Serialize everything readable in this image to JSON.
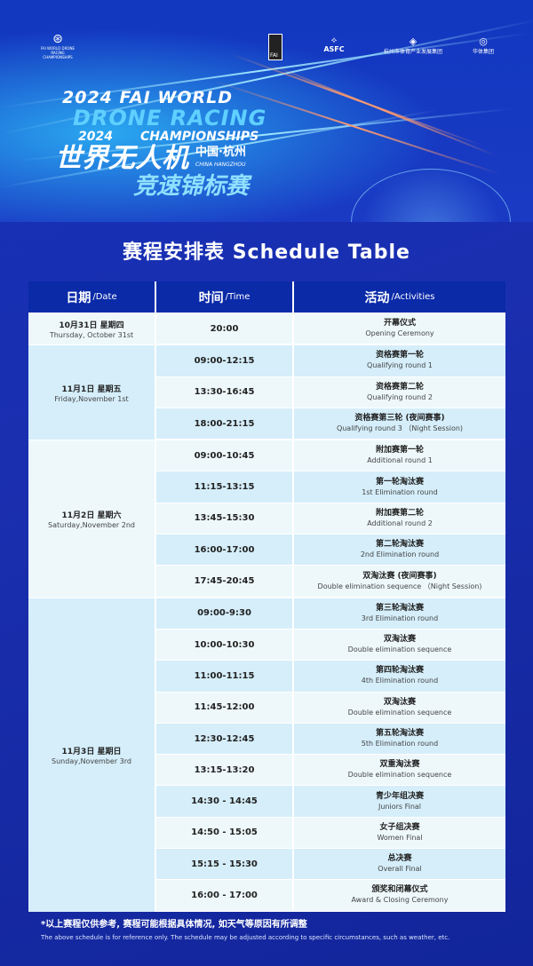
{
  "header": {
    "logos": [
      {
        "name": "drone-racing-championship-logo",
        "text": "FAI WORLD DRONE RACING CHAMPIONSHIPS"
      },
      {
        "name": "fai-logo",
        "text": "FAI"
      },
      {
        "name": "asfc-logo",
        "text": "ASFC"
      },
      {
        "name": "hangzhou-sports-logo",
        "text": "杭州市体育产业发展集团"
      },
      {
        "name": "huati-logo",
        "text": "华体集团"
      }
    ],
    "title_line1": "2024 FAI WORLD",
    "title_line2": "DRONE RACING",
    "title_line3": "CHAMPIONSHIPS",
    "cn_year": "2024",
    "cn_title1": "世界无人机",
    "cn_city": "中国·杭州",
    "en_city": "CHINA HANGZHOU",
    "cn_title2": "竞速锦标赛"
  },
  "schedule_title": "赛程安排表 Schedule Table",
  "columns": [
    {
      "zh": "日期",
      "en": "/Date"
    },
    {
      "zh": "时间",
      "en": "/Time"
    },
    {
      "zh": "活动",
      "en": "/Activities"
    }
  ],
  "groups": [
    {
      "date_zh": "10月31日 星期四",
      "date_en": "Thursday, October 31st",
      "rows": [
        {
          "time": "20:00",
          "zh": "开幕仪式",
          "en": "Opening Ceremony"
        }
      ]
    },
    {
      "date_zh": "11月1日 星期五",
      "date_en": "Friday,November 1st",
      "rows": [
        {
          "time": "09:00-12:15",
          "zh": "资格赛第一轮",
          "en": "Qualifying round 1"
        },
        {
          "time": "13:30-16:45",
          "zh": "资格赛第二轮",
          "en": "Qualifying round 2"
        },
        {
          "time": "18:00-21:15",
          "zh": "资格赛第三轮 (夜间赛事)",
          "en": "Qualifying round 3 （Night Session)"
        }
      ]
    },
    {
      "date_zh": "11月2日 星期六",
      "date_en": "Saturday,November 2nd",
      "rows": [
        {
          "time": "09:00-10:45",
          "zh": "附加赛第一轮",
          "en": "Additional round 1"
        },
        {
          "time": "11:15-13:15",
          "zh": "第一轮淘汰赛",
          "en": "1st Elimination round"
        },
        {
          "time": "13:45-15:30",
          "zh": "附加赛第二轮",
          "en": "Additional round 2"
        },
        {
          "time": "16:00-17:00",
          "zh": "第二轮淘汰赛",
          "en": "2nd Elimination round"
        },
        {
          "time": "17:45-20:45",
          "zh": "双淘汰赛 (夜间赛事)",
          "en": "Double elimination sequence （Night Session)"
        }
      ]
    },
    {
      "date_zh": "11月3日 星期日",
      "date_en": "Sunday,November 3rd",
      "rows": [
        {
          "time": "09:00-9:30",
          "zh": "第三轮淘汰赛",
          "en": "3rd Elimination round"
        },
        {
          "time": "10:00-10:30",
          "zh": "双淘汰赛",
          "en": "Double elimination sequence"
        },
        {
          "time": "11:00-11:15",
          "zh": "第四轮淘汰赛",
          "en": "4th Elimination round"
        },
        {
          "time": "11:45-12:00",
          "zh": "双淘汰赛",
          "en": "Double elimination sequence"
        },
        {
          "time": "12:30-12:45",
          "zh": "第五轮淘汰赛",
          "en": "5th Elimination round"
        },
        {
          "time": "13:15-13:20",
          "zh": "双重淘汰赛",
          "en": "Double elimination sequence"
        },
        {
          "time": "14:30 - 14:45",
          "zh": "青少年组决赛",
          "en": "Juniors Final"
        },
        {
          "time": "14:50 - 15:05",
          "zh": "女子组决赛",
          "en": "Women Final"
        },
        {
          "time": "15:15 - 15:30",
          "zh": "总决赛",
          "en": "Overall Final"
        },
        {
          "time": "16:00 - 17:00",
          "zh": "颁奖和闭幕仪式",
          "en": "Award & Closing Ceremony"
        }
      ]
    }
  ],
  "footnote_zh": "*以上赛程仅供参考, 赛程可能根据具体情况, 如天气等原因有所调整",
  "footnote_en": "The above schedule is for reference only. The schedule may be adjusted according to specific circumstances, such as weather, etc.",
  "colors": {
    "header_bg": "#0a2aa8",
    "row_light": "#eef8fb",
    "row_blue": "#d5eefa",
    "background": "#1530b8"
  }
}
